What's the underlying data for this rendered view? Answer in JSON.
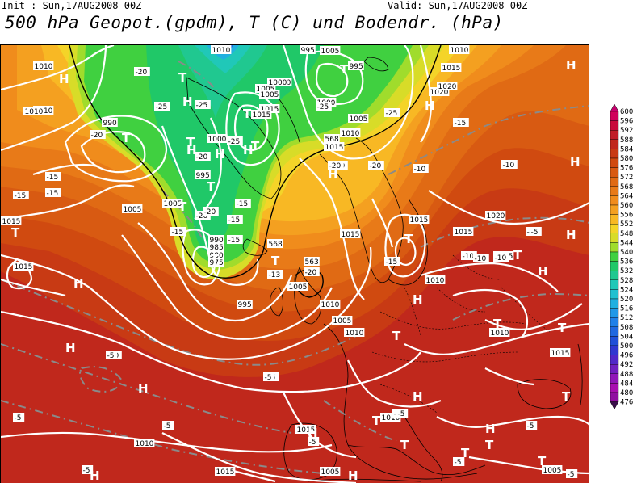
{
  "header": {
    "init": "Init : Sun,17AUG2008 00Z",
    "valid": "Valid: Sun,17AUG2008 00Z",
    "title": "500 hPa Geopot.(gpdm), T (C) und Bodendr. (hPa)"
  },
  "colorbar": {
    "levels": [
      "600",
      "596",
      "592",
      "588",
      "584",
      "580",
      "576",
      "572",
      "568",
      "564",
      "560",
      "556",
      "552",
      "548",
      "544",
      "540",
      "536",
      "532",
      "528",
      "524",
      "520",
      "516",
      "512",
      "508",
      "504",
      "500",
      "496",
      "492",
      "488",
      "484",
      "480",
      "476"
    ],
    "colors": [
      "#d0005a",
      "#c80a3c",
      "#c01e28",
      "#c0281c",
      "#c83a14",
      "#d04a10",
      "#d85a12",
      "#e06a14",
      "#e87a18",
      "#f08c1c",
      "#f4a020",
      "#f8b824",
      "#f4d428",
      "#d8dc28",
      "#a0dc2c",
      "#40d040",
      "#20c868",
      "#20c890",
      "#20c8b8",
      "#20c0d0",
      "#20b0e0",
      "#2098e8",
      "#2080e8",
      "#2068e0",
      "#2050d8",
      "#3038d0",
      "#5028c8",
      "#7020c0",
      "#9018b8",
      "#a810b0",
      "#9010a0",
      "#701080"
    ],
    "marker_colors": {
      "top": "#c8006e",
      "bottom": "#3a0e4a"
    }
  },
  "pressure_labels": [
    "1010",
    "1010",
    "1010",
    "1010",
    "1015",
    "995",
    "990",
    "1000",
    "1000",
    "995",
    "1005",
    "1005",
    "990",
    "985",
    "980",
    "975",
    "995",
    "1000",
    "1005",
    "1005",
    "1005",
    "1010",
    "1015",
    "1015",
    "1020",
    "1010",
    "1015",
    "1015",
    "1020",
    "1005",
    "1010",
    "1015",
    "1010",
    "1015",
    "1005",
    "1015",
    "1010",
    "1015",
    "1020",
    "995",
    "1000",
    "1005",
    "1005",
    "1015",
    "1010",
    "1005",
    "1010",
    "1015",
    "1005",
    "1015",
    "1010"
  ],
  "temp_labels": [
    "-20",
    "-25",
    "-20",
    "-15",
    "-15",
    "-15",
    "-25",
    "-25",
    "-25",
    "-20",
    "-25",
    "-20",
    "-20",
    "-15",
    "-15",
    "-15",
    "-20",
    "-15",
    "-13",
    "-20",
    "-20",
    "-15",
    "-20",
    "-15",
    "-10",
    "-10",
    "-10",
    "-10",
    "-10",
    "-10",
    "-10",
    "-5",
    "-5",
    "-5",
    "-5",
    "-5",
    "-5",
    "-5",
    "-5",
    "-5",
    "-5",
    "-5",
    "-5",
    "-5",
    "-5"
  ],
  "geopot_labels": [
    "568",
    "568",
    "563"
  ],
  "high_symbol": "H",
  "low_symbol": "T"
}
